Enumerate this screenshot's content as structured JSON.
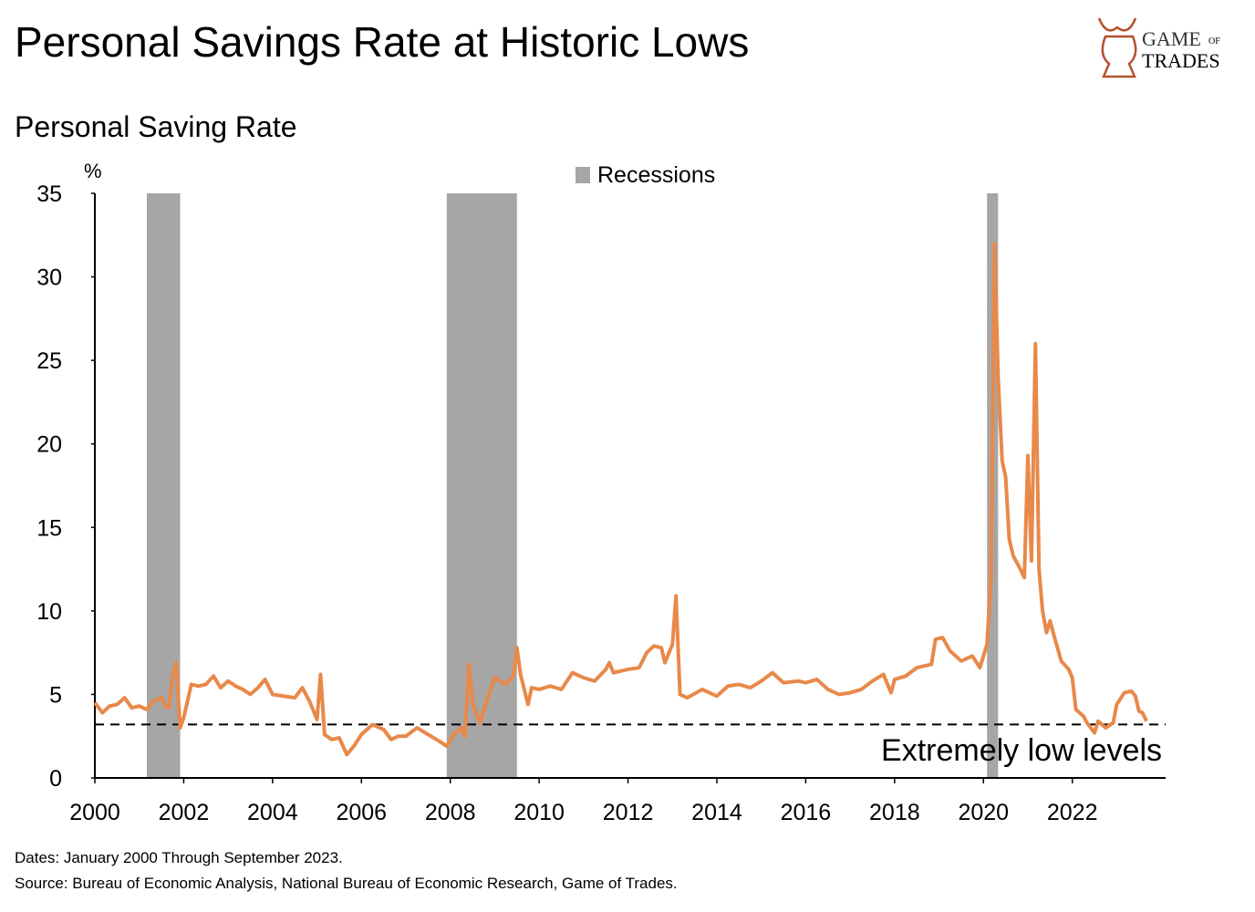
{
  "chart_data": {
    "type": "line",
    "title": "Personal Savings Rate at Historic Lows",
    "subtitle": "Personal Saving Rate",
    "y_label": "%",
    "logo": {
      "top": "GAME",
      "of": "OF",
      "bottom": "TRADES"
    },
    "footnotes": [
      "Dates: January 2000 Through September 2023.",
      "Source: Bureau of Economic Analysis, National Bureau of Economic Research, Game of Trades."
    ],
    "recessions": {
      "name": "Recessions",
      "color": "#a6a6a6",
      "periods": [
        [
          2001.17,
          2001.92
        ],
        [
          2007.92,
          2009.5
        ],
        [
          2020.08,
          2020.33
        ]
      ]
    },
    "threshold": {
      "value": 3.2,
      "label": "Extremely low levels"
    },
    "xlim": [
      2000,
      2024.1
    ],
    "ylim": [
      0,
      35
    ],
    "xticks": [
      2000,
      2002,
      2004,
      2006,
      2008,
      2010,
      2012,
      2014,
      2016,
      2018,
      2020,
      2022
    ],
    "yticks": [
      0,
      5,
      10,
      15,
      20,
      25,
      30,
      35
    ],
    "grid": false,
    "x": [
      2000.0,
      2000.17,
      2000.33,
      2000.5,
      2000.67,
      2000.83,
      2001.0,
      2001.17,
      2001.33,
      2001.5,
      2001.58,
      2001.67,
      2001.75,
      2001.83,
      2001.92,
      2002.0,
      2002.17,
      2002.33,
      2002.5,
      2002.67,
      2002.83,
      2003.0,
      2003.17,
      2003.33,
      2003.5,
      2003.67,
      2003.83,
      2004.0,
      2004.25,
      2004.5,
      2004.67,
      2004.83,
      2005.0,
      2005.08,
      2005.17,
      2005.33,
      2005.5,
      2005.67,
      2005.83,
      2006.0,
      2006.25,
      2006.5,
      2006.67,
      2006.83,
      2007.0,
      2007.25,
      2007.5,
      2007.75,
      2007.92,
      2008.08,
      2008.25,
      2008.33,
      2008.42,
      2008.5,
      2008.67,
      2008.83,
      2009.0,
      2009.25,
      2009.42,
      2009.5,
      2009.58,
      2009.75,
      2009.83,
      2010.0,
      2010.25,
      2010.5,
      2010.75,
      2011.0,
      2011.25,
      2011.5,
      2011.58,
      2011.67,
      2012.0,
      2012.25,
      2012.42,
      2012.58,
      2012.75,
      2012.83,
      2013.0,
      2013.08,
      2013.17,
      2013.33,
      2013.67,
      2014.0,
      2014.25,
      2014.5,
      2014.75,
      2015.0,
      2015.25,
      2015.5,
      2015.83,
      2016.0,
      2016.25,
      2016.5,
      2016.75,
      2017.0,
      2017.25,
      2017.5,
      2017.75,
      2017.92,
      2018.0,
      2018.25,
      2018.5,
      2018.83,
      2018.92,
      2019.08,
      2019.25,
      2019.5,
      2019.75,
      2019.92,
      2020.0,
      2020.08,
      2020.17,
      2020.25,
      2020.33,
      2020.42,
      2020.5,
      2020.58,
      2020.67,
      2020.83,
      2020.92,
      2021.0,
      2021.08,
      2021.17,
      2021.25,
      2021.33,
      2021.42,
      2021.5,
      2021.58,
      2021.75,
      2021.92,
      2022.0,
      2022.08,
      2022.25,
      2022.33,
      2022.5,
      2022.58,
      2022.75,
      2022.92,
      2023.0,
      2023.17,
      2023.33,
      2023.42,
      2023.5,
      2023.58,
      2023.67
    ],
    "series": [
      {
        "name": "Personal Saving Rate",
        "color": "#e8894a",
        "values": [
          4.5,
          3.9,
          4.3,
          4.4,
          4.8,
          4.2,
          4.3,
          4.1,
          4.6,
          4.8,
          4.3,
          4.2,
          6.2,
          6.9,
          3.0,
          3.6,
          5.6,
          5.5,
          5.6,
          6.1,
          5.4,
          5.8,
          5.5,
          5.3,
          5.0,
          5.4,
          5.9,
          5.0,
          4.9,
          4.8,
          5.4,
          4.6,
          3.5,
          6.2,
          2.6,
          2.3,
          2.4,
          1.4,
          1.9,
          2.6,
          3.2,
          2.9,
          2.3,
          2.5,
          2.5,
          3.0,
          2.6,
          2.2,
          1.9,
          2.6,
          3.0,
          2.5,
          6.8,
          4.5,
          3.3,
          4.7,
          6.0,
          5.6,
          6.1,
          7.8,
          6.2,
          4.4,
          5.4,
          5.3,
          5.5,
          5.3,
          6.3,
          6.0,
          5.8,
          6.5,
          6.9,
          6.3,
          6.5,
          6.6,
          7.5,
          7.9,
          7.8,
          6.9,
          8.0,
          10.9,
          5.0,
          4.8,
          5.3,
          4.9,
          5.5,
          5.6,
          5.4,
          5.8,
          6.3,
          5.7,
          5.8,
          5.7,
          5.9,
          5.3,
          5.0,
          5.1,
          5.3,
          5.8,
          6.2,
          5.1,
          5.9,
          6.1,
          6.6,
          6.8,
          8.3,
          8.4,
          7.6,
          7.0,
          7.3,
          6.6,
          7.3,
          8.0,
          12.0,
          32.0,
          24.0,
          19.0,
          18.0,
          14.3,
          13.3,
          12.5,
          12.0,
          19.3,
          13.0,
          26.0,
          12.5,
          10.0,
          8.7,
          9.4,
          8.6,
          7.0,
          6.5,
          6.0,
          4.1,
          3.7,
          3.3,
          2.7,
          3.4,
          3.0,
          3.3,
          4.4,
          5.1,
          5.2,
          4.9,
          4.0,
          3.9,
          3.4
        ]
      }
    ]
  }
}
